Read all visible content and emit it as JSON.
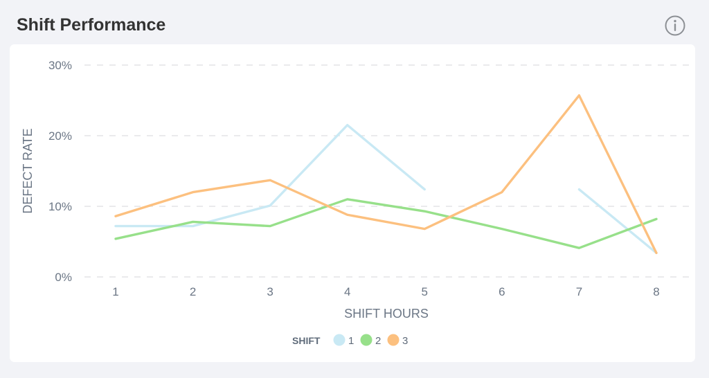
{
  "header": {
    "title": "Shift Performance",
    "info_icon": "info-circle-icon"
  },
  "chart_data": {
    "type": "line",
    "title": "Shift Performance",
    "xlabel": "SHIFT HOURS",
    "ylabel": "DEFECT RATE",
    "x": [
      1,
      2,
      3,
      4,
      5,
      6,
      7,
      8
    ],
    "x_tick_labels": [
      "1",
      "2",
      "3",
      "4",
      "5",
      "6",
      "7",
      "8"
    ],
    "y_tick_labels": [
      "0%",
      "10%",
      "20%",
      "30%"
    ],
    "ylim": [
      0,
      30
    ],
    "grid": "horizontal dashed",
    "legend": {
      "title": "SHIFT",
      "position": "bottom",
      "entries": [
        "1",
        "2",
        "3"
      ]
    },
    "series": [
      {
        "name": "1",
        "color": "#c9e9f4",
        "values": [
          7.2,
          7.2,
          10.1,
          21.5,
          12.4,
          null,
          12.4,
          3.4
        ]
      },
      {
        "name": "2",
        "color": "#97e08a",
        "values": [
          5.4,
          7.8,
          7.2,
          11.0,
          9.3,
          6.8,
          4.1,
          8.2
        ]
      },
      {
        "name": "3",
        "color": "#fcc07f",
        "values": [
          8.6,
          12.0,
          13.7,
          8.8,
          6.8,
          12.0,
          25.7,
          3.4
        ]
      }
    ]
  }
}
